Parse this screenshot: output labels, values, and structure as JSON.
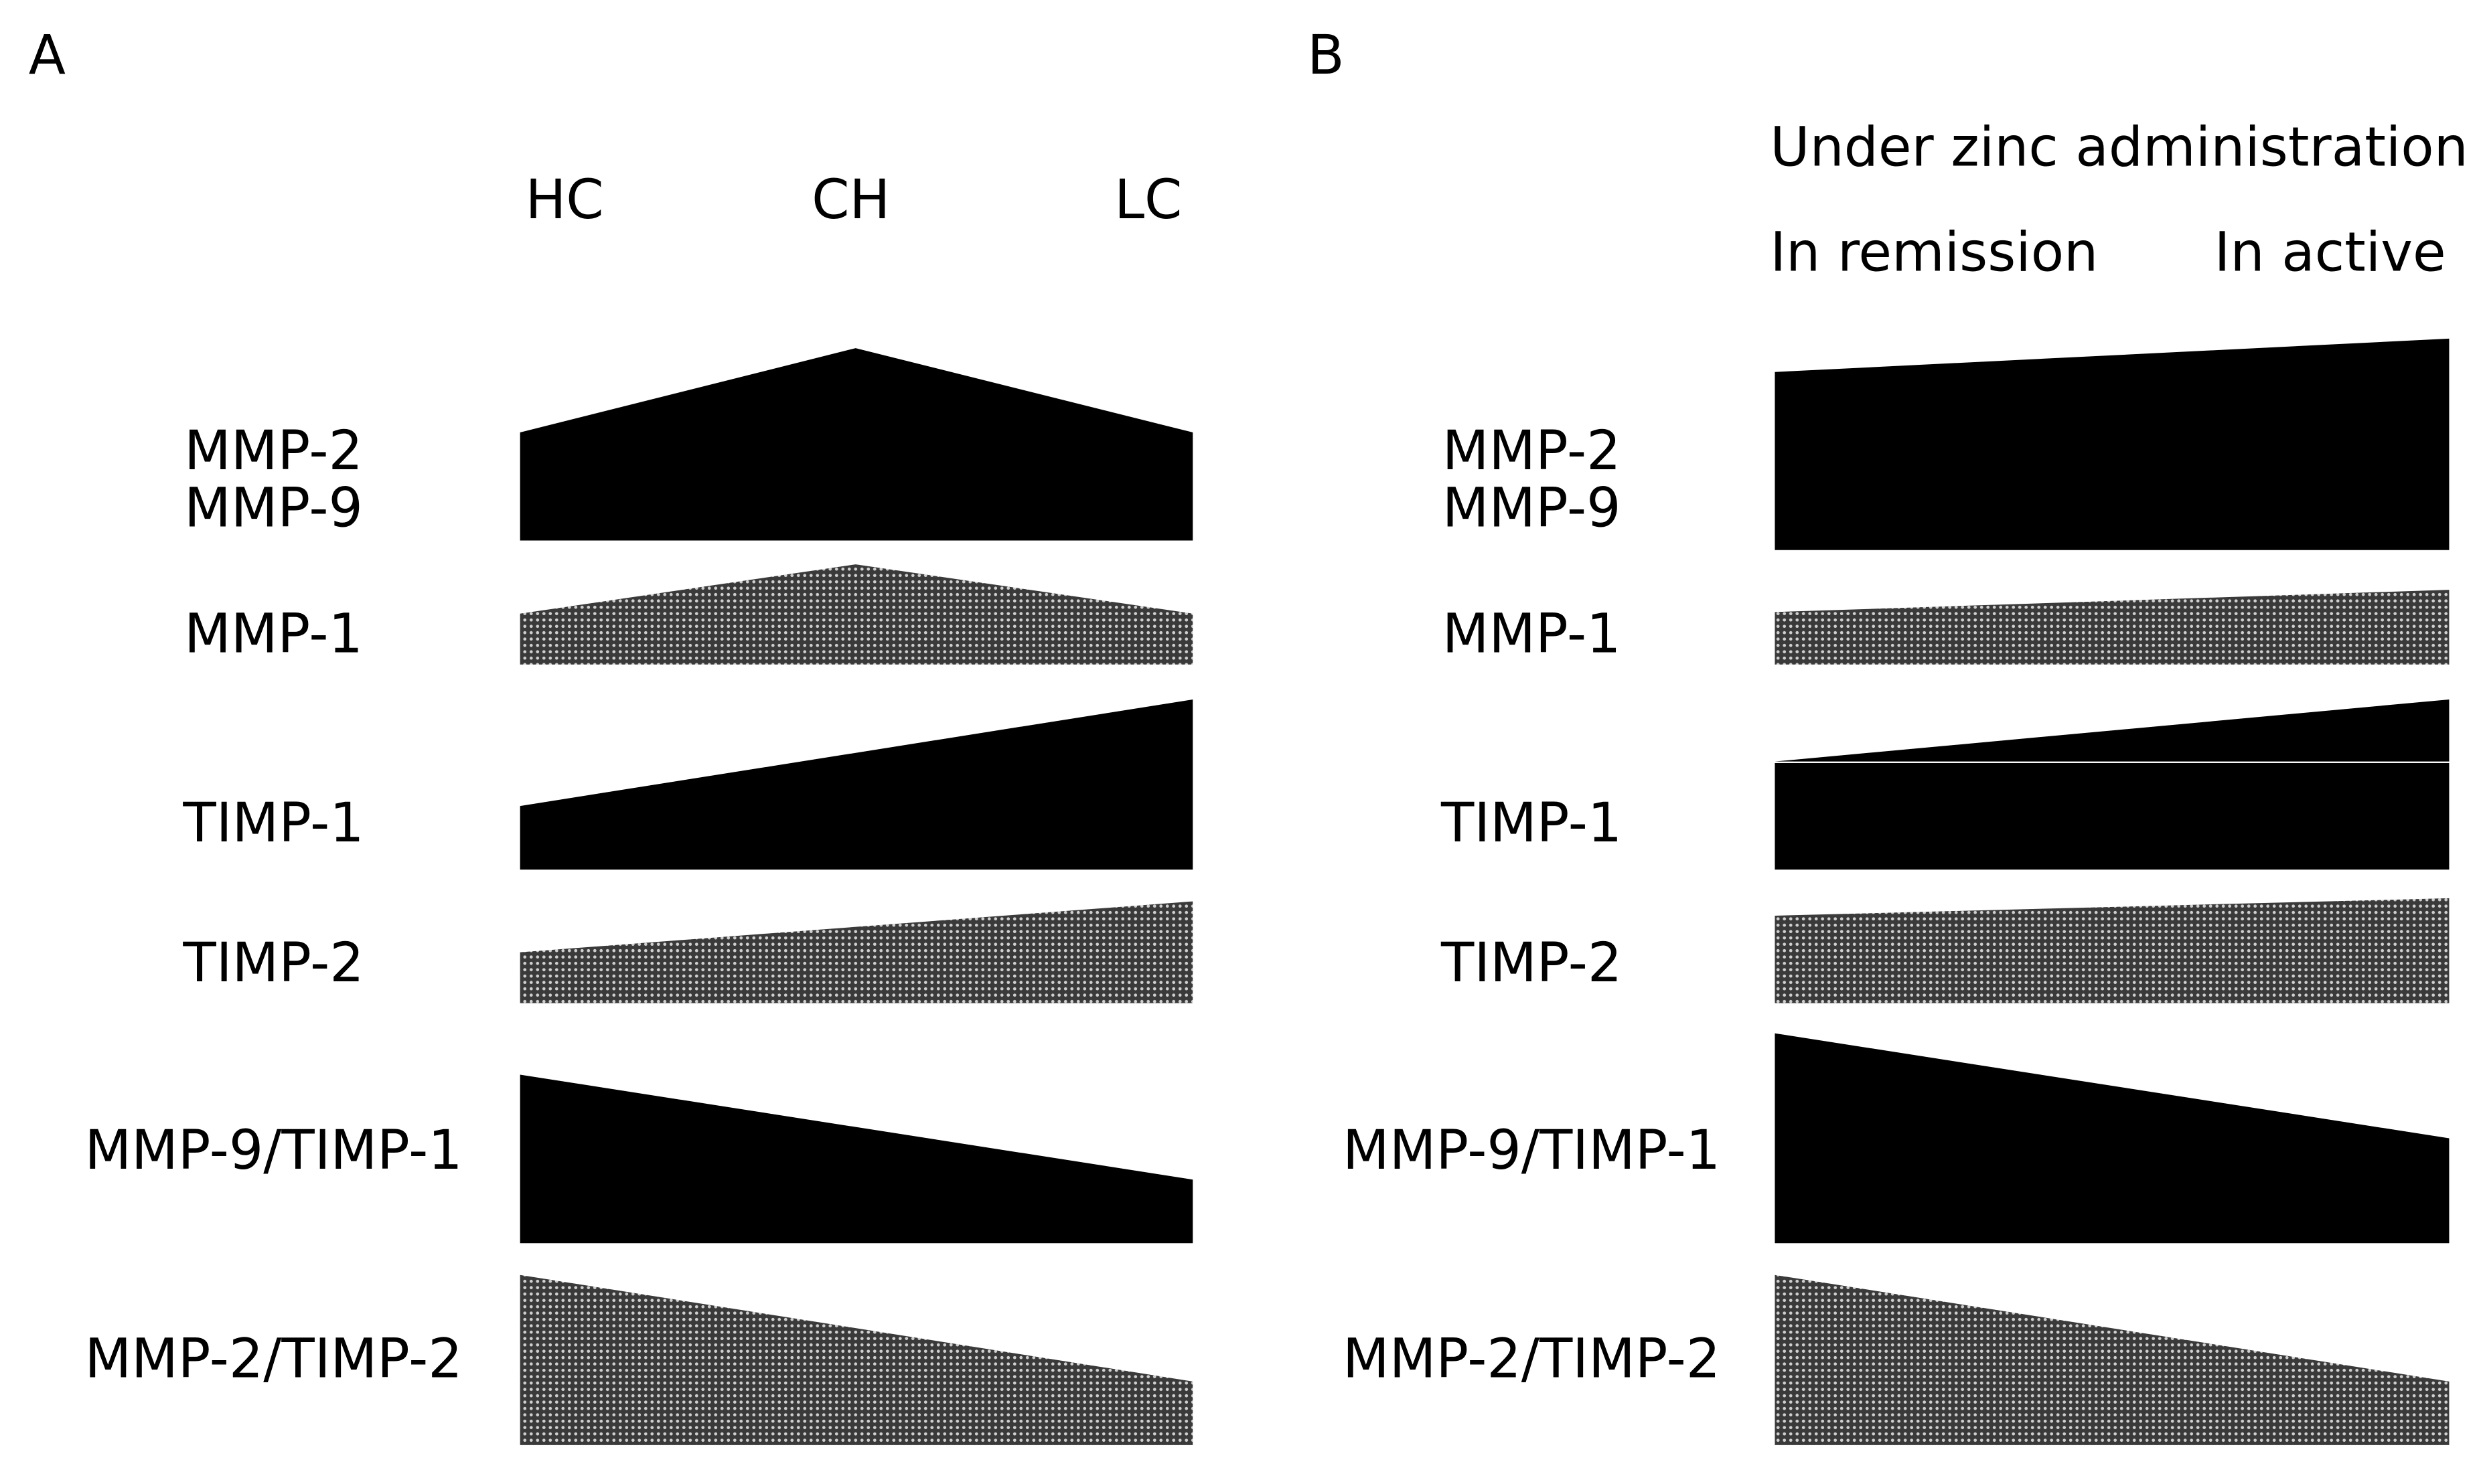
{
  "panels": [
    {
      "label": "A",
      "header": {
        "columns": [
          "HC",
          "CH",
          "LC"
        ]
      },
      "rows": [
        {
          "labels": [
            "MMP-2",
            "MMP-9"
          ]
        },
        {
          "labels": [
            "MMP-1"
          ]
        },
        {
          "labels": [
            "TIMP-1"
          ]
        },
        {
          "labels": [
            "TIMP-2"
          ]
        },
        {
          "labels": [
            "MMP-9/TIMP-1"
          ]
        },
        {
          "labels": [
            "MMP-2/TIMP-2"
          ]
        }
      ]
    },
    {
      "label": "B",
      "header": {
        "title": "Under zinc administration",
        "columns": [
          "In remission",
          "In active"
        ]
      },
      "rows": [
        {
          "labels": [
            "MMP-2",
            "MMP-9"
          ]
        },
        {
          "labels": [
            "MMP-1"
          ]
        },
        {
          "labels": [
            "TIMP-1"
          ]
        },
        {
          "labels": [
            "TIMP-2"
          ]
        },
        {
          "labels": [
            "MMP-9/TIMP-1"
          ]
        },
        {
          "labels": [
            "MMP-2/TIMP-2"
          ]
        }
      ]
    }
  ]
}
